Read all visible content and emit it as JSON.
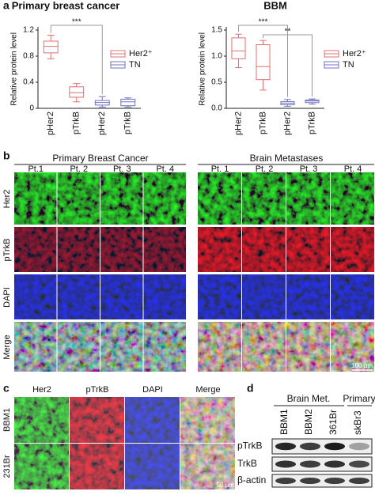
{
  "chart_data": [
    {
      "type": "box",
      "panel": "a",
      "title": "Primary breast cancer",
      "y_label": "Relative protein level",
      "categories": [
        "pHer2",
        "pTrkB",
        "pHer2",
        "pTrkB"
      ],
      "ylim": [
        0,
        1.2
      ],
      "yticks": [
        0,
        0.4,
        0.8,
        1.2
      ],
      "series": [
        {
          "name": "Her2⁺",
          "color": "#e07070",
          "values": [
            {
              "min": 0.76,
              "q1": 0.85,
              "median": 0.95,
              "q3": 1.03,
              "max": 1.12
            },
            {
              "min": 0.1,
              "q1": 0.17,
              "median": 0.24,
              "q3": 0.33,
              "max": 0.38
            },
            null,
            null
          ]
        },
        {
          "name": "TN",
          "color": "#7070c0",
          "values": [
            null,
            null,
            {
              "min": 0.02,
              "q1": 0.05,
              "median": 0.09,
              "q3": 0.12,
              "max": 0.18
            },
            {
              "min": 0.02,
              "q1": 0.04,
              "median": 0.1,
              "q3": 0.14,
              "max": 0.16
            }
          ]
        }
      ],
      "annotations": [
        {
          "text": "***",
          "from": 0,
          "to": 2
        }
      ]
    },
    {
      "type": "box",
      "title": "BBM",
      "y_label": "Relative protein level",
      "categories": [
        "pHer2",
        "pTrkB",
        "pHer2",
        "pTrkB"
      ],
      "ylim": [
        0,
        1.5
      ],
      "yticks": [
        {
          "value": 0,
          "label": "0.0"
        },
        0.5,
        {
          "value": 1,
          "label": "1.0"
        },
        1.5
      ],
      "series": [
        {
          "name": "Her2⁺",
          "color": "#e07070",
          "values": [
            {
              "min": 0.78,
              "q1": 0.95,
              "median": 1.1,
              "q3": 1.35,
              "max": 1.42
            },
            {
              "min": 0.35,
              "q1": 0.55,
              "median": 0.8,
              "q3": 1.22,
              "max": 1.3
            },
            null,
            null
          ]
        },
        {
          "name": "TN",
          "color": "#7070c0",
          "values": [
            null,
            null,
            {
              "min": 0.04,
              "q1": 0.07,
              "median": 0.1,
              "q3": 0.13,
              "max": 0.17
            },
            {
              "min": 0.08,
              "q1": 0.11,
              "median": 0.14,
              "q3": 0.16,
              "max": 0.18
            }
          ]
        }
      ],
      "annotations": [
        {
          "text": "***",
          "from": 0,
          "to": 2
        },
        {
          "text": "**",
          "from": 1,
          "to": 3
        }
      ]
    }
  ],
  "panel_b": {
    "label": "b",
    "groups": [
      {
        "title": "Primary Breast Cancer",
        "columns": [
          "Pt.1",
          "Pt. 2",
          "Pt. 3",
          "Pt. 4"
        ]
      },
      {
        "title": "Brain Metastases",
        "columns": [
          "Pt. 1",
          "Pt. 2",
          "Pt. 3",
          "Pt. 4"
        ]
      }
    ],
    "rows": [
      "Her2",
      "pTrkB",
      "DAPI",
      "Merge"
    ],
    "scale_bar": "100 µm"
  },
  "panel_c": {
    "label": "c",
    "columns": [
      "Her2",
      "pTrkB",
      "DAPI",
      "Merge"
    ],
    "rows": [
      "BBM1",
      "231Br"
    ],
    "scale_bar": "50 µm"
  },
  "panel_d": {
    "label": "d",
    "groups": [
      "Brain Met.",
      "Primary"
    ],
    "lanes": [
      "BBM1",
      "BBM2",
      "361Br",
      "skBr3"
    ],
    "rows": [
      "pTrkB",
      "TrkB",
      "β-actin"
    ]
  }
}
